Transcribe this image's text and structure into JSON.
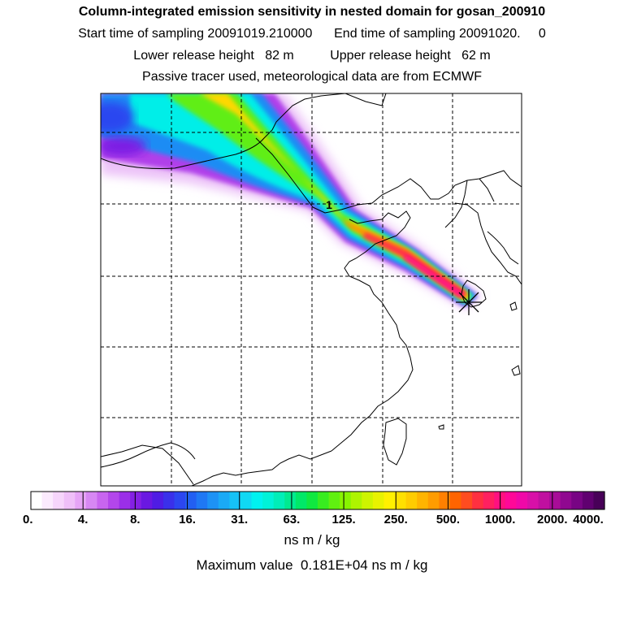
{
  "header": {
    "title": "Column-integrated emission sensitivity in nested domain for gosan_200910",
    "start_label": "Start time of sampling",
    "start_value": "20091019.210000",
    "end_label": "End time of sampling",
    "end_value": "20091020.     0",
    "lower_label": "Lower release height",
    "lower_value": "82 m",
    "upper_label": "Upper release height",
    "upper_value": "62 m",
    "model_note": "Passive tracer used, meteorological data are from ECMWF"
  },
  "map": {
    "annotation": "1",
    "receptor_marker": "star-marker",
    "grid": true
  },
  "colorbar": {
    "labels": [
      "0.",
      "4.",
      "8.",
      "16.",
      "31.",
      "63.",
      "125.",
      "250.",
      "500.",
      "1000.",
      "2000.",
      "4000."
    ],
    "colors": [
      "#ffffff",
      "#fbeafd",
      "#f6d5fb",
      "#efbff8",
      "#e6a4f6",
      "#d787f3",
      "#c865ef",
      "#b346eb",
      "#9b2fe8",
      "#8420e4",
      "#6a18e2",
      "#4f1ce4",
      "#3a30ea",
      "#2c46f0",
      "#225ff2",
      "#1f78f4",
      "#1d92f5",
      "#1aaaf6",
      "#16c2f6",
      "#10d8f4",
      "#00f2f0",
      "#00f2d8",
      "#00eeb8",
      "#00ea90",
      "#00e868",
      "#10e840",
      "#38ec20",
      "#60f010",
      "#88f400",
      "#aef400",
      "#cef400",
      "#e8f200",
      "#fff000",
      "#ffe000",
      "#ffcc00",
      "#ffb400",
      "#ff9c00",
      "#ff8000",
      "#ff6400",
      "#ff4c20",
      "#ff3040",
      "#ff2060",
      "#ff1080",
      "#ff0898",
      "#f008a8",
      "#d810a8",
      "#c010a0",
      "#a80c98",
      "#900890",
      "#780484",
      "#600070",
      "#480058"
    ],
    "units": "ns m / kg"
  },
  "footer": {
    "max_label": "Maximum value",
    "max_value": "0.181E+04",
    "max_units": "ns m / kg"
  }
}
